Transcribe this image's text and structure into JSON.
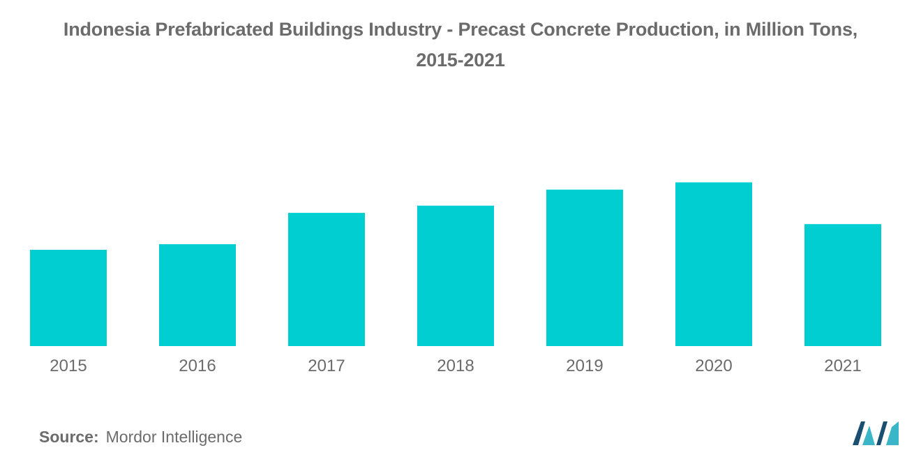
{
  "title_line1": "Indonesia Prefabricated Buildings Industry - Precast Concrete Production, in Million Tons,",
  "title_line2": "2015-2021",
  "source": {
    "label": "Source:",
    "value": "Mordor Intelligence"
  },
  "colors": {
    "bar": "#00ced1",
    "text": "#6b6b6b",
    "logo_dark": "#1b4f72",
    "logo_teal": "#3ab6c8"
  },
  "logo_icon": "mordor-intelligence-logo-icon",
  "chart_data": {
    "type": "bar",
    "title": "Indonesia Prefabricated Buildings Industry - Precast Concrete Production, in Million Tons, 2015-2021",
    "xlabel": "",
    "ylabel": "",
    "categories": [
      "2015",
      "2016",
      "2017",
      "2018",
      "2019",
      "2020",
      "2021"
    ],
    "values": [
      6.0,
      6.35,
      8.3,
      8.75,
      9.75,
      10.2,
      7.6
    ],
    "ylim": [
      0,
      14
    ],
    "grid": false,
    "legend": "none"
  }
}
